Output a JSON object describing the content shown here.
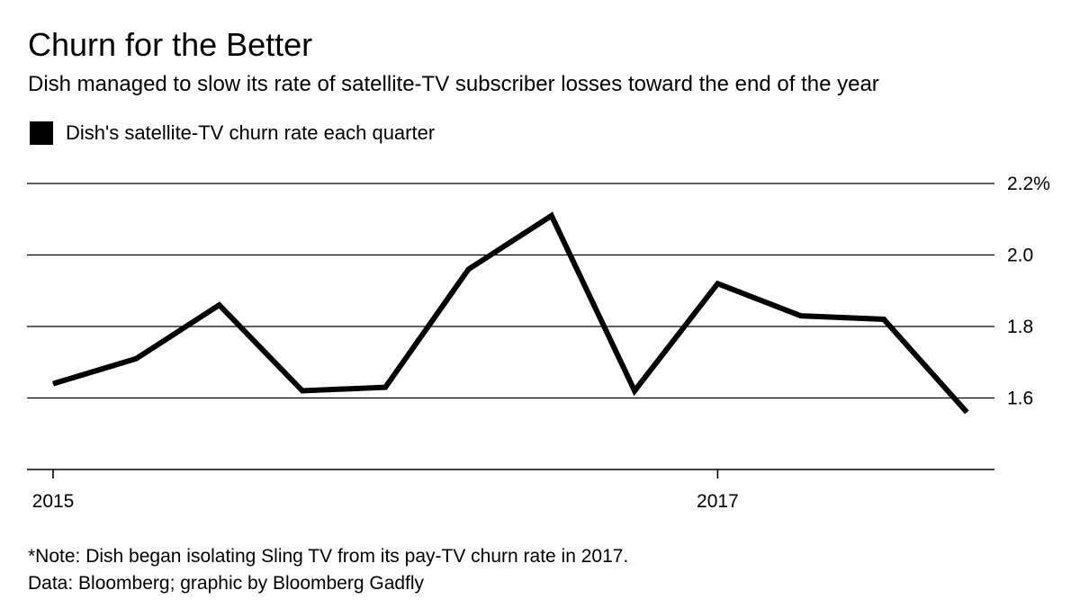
{
  "chart_data": {
    "type": "line",
    "title": "Churn for the Better",
    "subtitle": "Dish managed to slow its rate of satellite-TV subscriber losses toward the end of the year",
    "series": [
      {
        "name": "Dish's satellite-TV churn rate each quarter",
        "color": "#000000",
        "values": [
          1.64,
          1.71,
          1.86,
          1.62,
          1.63,
          1.96,
          2.11,
          1.62,
          1.92,
          1.83,
          1.82,
          1.56
        ]
      }
    ],
    "x_label_positions": [
      0,
      8
    ],
    "x_tick_labels": [
      "2015",
      "2017"
    ],
    "ylim": [
      1.4,
      2.2
    ],
    "y_ticks": [
      {
        "value": 2.2,
        "label": "2.2%"
      },
      {
        "value": 2.0,
        "label": "2.0"
      },
      {
        "value": 1.8,
        "label": "1.8"
      },
      {
        "value": 1.6,
        "label": "1.6"
      }
    ],
    "xlabel": "",
    "ylabel": "",
    "grid": true,
    "y_axis_side": "right",
    "legend_position": "top-left"
  },
  "footnotes": {
    "note": "*Note: Dish began isolating Sling TV from its pay-TV churn rate in 2017.",
    "source": "Data: Bloomberg; graphic by Bloomberg Gadfly"
  }
}
